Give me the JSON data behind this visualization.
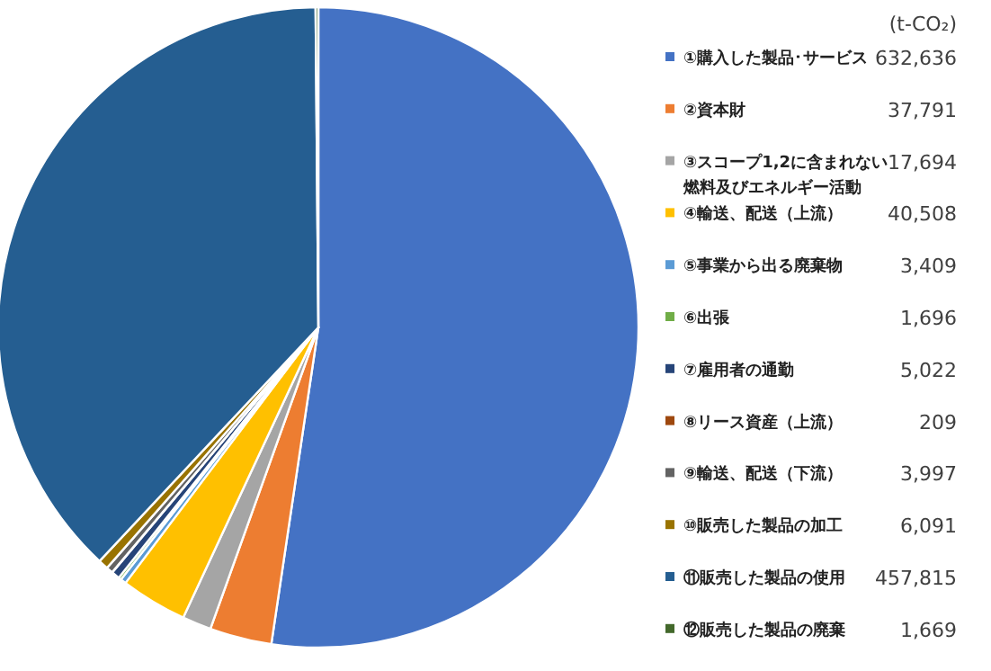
{
  "chart_data": {
    "type": "pie",
    "legend_title": "(t-CO₂)",
    "legend": "right",
    "categories": [
      "①購入した製品･サービス",
      "②資本財",
      "③スコープ1,2に含まれない燃料及びエネルギー活動",
      "④輸送、配送（上流）",
      "⑤事業から出る廃棄物",
      "⑥出張",
      "⑦雇用者の通勤",
      "⑧リース資産（上流）",
      "⑨輸送、配送（下流）",
      "⑩販売した製品の加工",
      "⑪販売した製品の使用",
      "⑫販売した製品の廃棄"
    ],
    "values": [
      632636,
      37791,
      17694,
      40508,
      3409,
      1696,
      5022,
      209,
      3997,
      6091,
      457815,
      1669
    ],
    "value_labels": [
      "632,636",
      "37,791",
      "17,694",
      "40,508",
      "3,409",
      "1,696",
      "5,022",
      "209",
      "3,997",
      "6,091",
      "457,815",
      "1,669"
    ],
    "colors": [
      "#4472c4",
      "#ed7d31",
      "#a5a5a5",
      "#ffc000",
      "#5b9bd5",
      "#70ad47",
      "#264478",
      "#9e480e",
      "#636363",
      "#997300",
      "#255e91",
      "#43682b"
    ]
  }
}
